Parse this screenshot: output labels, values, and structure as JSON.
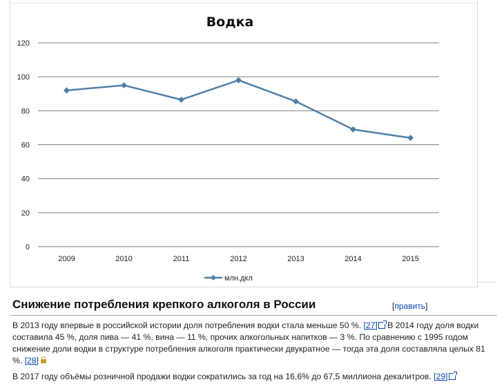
{
  "chart_data": {
    "type": "line",
    "title": "Водка",
    "categories": [
      "2009",
      "2010",
      "2011",
      "2012",
      "2013",
      "2014",
      "2015"
    ],
    "series": [
      {
        "name": "млн.дкл",
        "values": [
          92,
          95,
          86.5,
          98,
          85.5,
          69,
          64
        ]
      }
    ],
    "ylim": [
      0,
      120
    ],
    "yticks": [
      0,
      20,
      40,
      60,
      80,
      100,
      120
    ],
    "grid": true,
    "legend": "bottom",
    "colors": {
      "line": "#4f7fa8",
      "grid": "#7f7f7f"
    }
  },
  "article": {
    "heading": "Снижение потребления крепкого алкоголя в России",
    "edit": {
      "open": "[",
      "label": "править",
      "close": "]"
    },
    "p1": {
      "t1": "В 2013 году впервые в российской истории доля потребления водки стала меньше 50 %.",
      "ref1": "[27]",
      "t2": "В 2014 году доля водки составила 45 %, доля пива — 41 %, вина — 11 %, прочих алкогольных напитков — 3 %. По сравнению с 1995 годом снижение доли водки в структуре потребления алкоголя практически двукратное — тогда эта доля составляла целых 81 %.",
      "ref2": "[28]"
    },
    "p2": {
      "t1": "В 2017 году объёмы розничной продажи водки сократились за год на 16,6% до 67,5 миллиона декалитров.",
      "ref1": "[29]"
    }
  }
}
